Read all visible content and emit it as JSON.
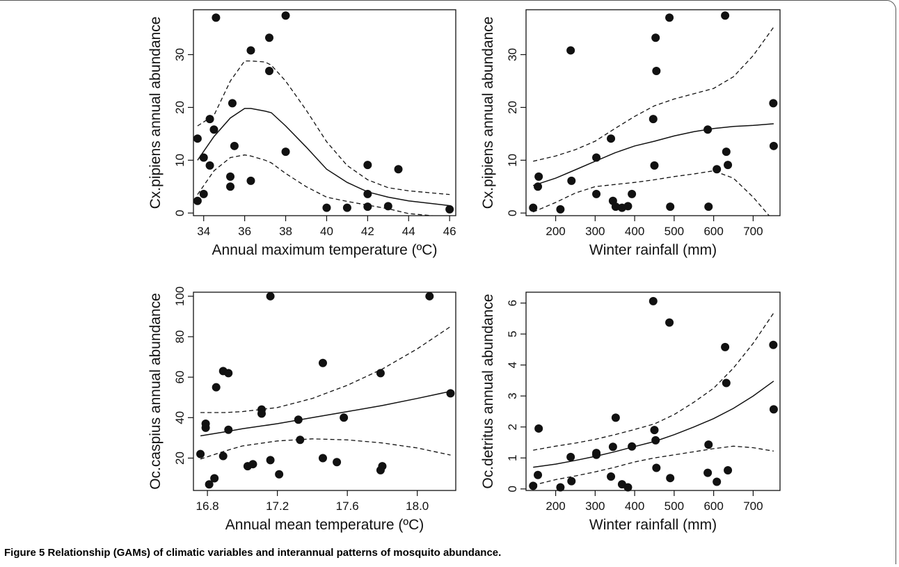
{
  "figure": {
    "caption_label": "Figure 5",
    "caption_text": "Relationship (GAMs) of climatic variables and interannual patterns of mosquito abundance."
  },
  "chart_data": [
    {
      "type": "scatter",
      "xlabel": "Annual maximum temperature (ºC)",
      "ylabel": "Cx.pipiens annual abundance",
      "xlim": [
        33.5,
        46.3
      ],
      "ylim": [
        -0.5,
        38.5
      ],
      "xticks": [
        34,
        36,
        38,
        40,
        42,
        44,
        46
      ],
      "xtick_labels": [
        "34",
        "36",
        "38",
        "40",
        "42",
        "44",
        "46"
      ],
      "yticks": [
        0,
        10,
        20,
        30
      ],
      "ytick_labels": [
        "0",
        "10",
        "20",
        "30"
      ],
      "points": {
        "x": [
          33.7,
          34.0,
          34.0,
          34.3,
          34.3,
          34.5,
          34.6,
          35.3,
          35.3,
          35.4,
          35.5,
          36.3,
          36.3,
          37.2,
          37.2,
          38.0,
          38.0,
          40.0,
          41.0,
          42.0,
          42.0,
          42.0,
          43.0,
          43.5,
          46.0
        ],
        "y": [
          2.3,
          10.5,
          3.6,
          17.8,
          9.0,
          15.8,
          37.0,
          6.9,
          5.0,
          20.8,
          12.7,
          30.8,
          6.1,
          33.2,
          26.9,
          37.4,
          11.6,
          1.0,
          1.0,
          9.1,
          3.6,
          1.2,
          1.3,
          8.3,
          0.7
        ],
        "extra_x": [
          33.7
        ],
        "extra_y": [
          14.1
        ]
      },
      "fit": {
        "x": [
          33.7,
          34.5,
          35.3,
          36.0,
          36.3,
          37.0,
          37.3,
          38.0,
          39.0,
          40.0,
          41.0,
          42.0,
          43.0,
          44.0,
          46.0
        ],
        "y": [
          10.0,
          14.5,
          18.0,
          19.8,
          19.8,
          19.3,
          19.0,
          16.5,
          12.5,
          8.3,
          5.8,
          4.0,
          3.0,
          2.3,
          1.4
        ],
        "upper": [
          16.5,
          18.5,
          25.0,
          28.8,
          28.8,
          28.6,
          28.0,
          25.0,
          19.5,
          13.5,
          9.0,
          6.3,
          4.8,
          4.2,
          3.5
        ],
        "lower": [
          3.5,
          8.0,
          10.5,
          11.0,
          10.8,
          10.0,
          9.5,
          7.5,
          5.0,
          3.0,
          2.2,
          1.5,
          0.8,
          -0.1,
          -0.8
        ]
      }
    },
    {
      "type": "scatter",
      "xlabel": "Winter rainfall (mm)",
      "ylabel": "Cx.pipiens annual abundance",
      "xlim": [
        125,
        768
      ],
      "ylim": [
        -0.5,
        38.5
      ],
      "xticks": [
        200,
        300,
        400,
        500,
        600,
        700
      ],
      "xtick_labels": [
        "200",
        "300",
        "400",
        "500",
        "600",
        "700"
      ],
      "yticks": [
        0,
        10,
        20,
        30
      ],
      "ytick_labels": [
        "0",
        "10",
        "20",
        "30"
      ],
      "points": {
        "x": [
          143,
          155,
          157,
          212,
          238,
          240,
          303,
          303,
          340,
          345,
          352,
          368,
          383,
          393,
          447,
          450,
          453,
          455,
          488,
          490,
          585,
          587,
          608,
          629,
          632,
          636,
          751,
          752
        ],
        "y": [
          1.0,
          5.0,
          6.9,
          0.7,
          30.8,
          6.1,
          10.5,
          3.6,
          14.1,
          2.3,
          1.2,
          1.0,
          1.3,
          3.6,
          17.8,
          9.0,
          33.2,
          26.9,
          37.0,
          1.2,
          15.8,
          1.2,
          8.3,
          37.4,
          11.6,
          9.1,
          20.8,
          12.7
        ]
      },
      "fit": {
        "x": [
          143,
          200,
          250,
          300,
          350,
          400,
          450,
          500,
          550,
          600,
          650,
          700,
          752
        ],
        "y": [
          5.2,
          6.6,
          8.2,
          9.8,
          11.4,
          12.7,
          13.6,
          14.6,
          15.4,
          16.0,
          16.4,
          16.6,
          16.9
        ],
        "upper": [
          9.8,
          10.8,
          12.0,
          13.6,
          16.0,
          18.3,
          20.3,
          21.6,
          22.6,
          23.6,
          25.8,
          29.8,
          35.2
        ],
        "lower": [
          0.2,
          2.0,
          3.8,
          5.0,
          5.4,
          5.8,
          6.3,
          6.9,
          7.4,
          8.0,
          6.6,
          3.0,
          -1.5
        ]
      }
    },
    {
      "type": "scatter",
      "xlabel": "Annual mean temperature (ºC)",
      "ylabel": "Oc.caspius annual abundance",
      "xlim": [
        16.72,
        18.22
      ],
      "ylim": [
        4,
        102
      ],
      "xticks": [
        16.8,
        17.2,
        17.6,
        18.0
      ],
      "xtick_labels": [
        "16.8",
        "17.2",
        "17.6",
        "18.0"
      ],
      "yticks": [
        20,
        40,
        60,
        80,
        100
      ],
      "ytick_labels": [
        "20",
        "40",
        "60",
        "80",
        "100"
      ],
      "points": {
        "x": [
          16.76,
          16.79,
          16.79,
          16.81,
          16.84,
          16.85,
          16.89,
          16.89,
          16.92,
          16.92,
          17.03,
          17.06,
          17.11,
          17.11,
          17.16,
          17.16,
          17.21,
          17.32,
          17.33,
          17.46,
          17.46,
          17.54,
          17.58,
          17.79,
          17.79,
          17.8,
          18.07,
          18.19
        ],
        "y": [
          22,
          37,
          35,
          7,
          10,
          55,
          21,
          63,
          62,
          34,
          16,
          17,
          44,
          42,
          100,
          19,
          12,
          39,
          29,
          67,
          20,
          18,
          40,
          62,
          14,
          16,
          100,
          52
        ]
      },
      "fit": {
        "x": [
          16.76,
          16.9,
          17.0,
          17.2,
          17.4,
          17.6,
          17.8,
          18.0,
          18.19
        ],
        "y": [
          31.0,
          33.0,
          34.5,
          37.0,
          40.0,
          43.0,
          46.0,
          49.5,
          53.0
        ],
        "upper": [
          42.5,
          42.5,
          43.0,
          45.0,
          49.5,
          56.0,
          64.0,
          74.0,
          85.0
        ],
        "lower": [
          19.5,
          23.5,
          26.0,
          28.5,
          29.5,
          29.0,
          27.5,
          25.0,
          21.5
        ]
      }
    },
    {
      "type": "scatter",
      "xlabel": "Winter rainfall (mm)",
      "ylabel": "Oc.detritus annual abundance",
      "xlim": [
        125,
        768
      ],
      "ylim": [
        -0.05,
        6.35
      ],
      "xticks": [
        200,
        300,
        400,
        500,
        600,
        700
      ],
      "xtick_labels": [
        "200",
        "300",
        "400",
        "500",
        "600",
        "700"
      ],
      "yticks": [
        0,
        1,
        2,
        3,
        4,
        5,
        6
      ],
      "ytick_labels": [
        "0",
        "1",
        "2",
        "3",
        "4",
        "5",
        "6"
      ],
      "points": {
        "x": [
          143,
          155,
          157,
          212,
          238,
          240,
          303,
          303,
          340,
          345,
          352,
          368,
          383,
          393,
          447,
          450,
          453,
          455,
          488,
          490,
          585,
          587,
          608,
          629,
          632,
          636,
          751,
          752
        ],
        "y": [
          0.1,
          0.45,
          1.95,
          0.05,
          1.03,
          0.25,
          1.1,
          1.16,
          0.4,
          1.36,
          2.3,
          0.15,
          0.05,
          1.37,
          6.06,
          1.9,
          1.57,
          0.68,
          5.37,
          0.35,
          0.52,
          1.43,
          0.23,
          4.58,
          3.42,
          0.6,
          4.65,
          2.57
        ]
      },
      "fit": {
        "x": [
          143,
          200,
          250,
          300,
          350,
          400,
          450,
          500,
          550,
          600,
          650,
          700,
          752
        ],
        "y": [
          0.7,
          0.8,
          0.92,
          1.05,
          1.2,
          1.37,
          1.53,
          1.75,
          2.0,
          2.27,
          2.6,
          3.0,
          3.48
        ],
        "upper": [
          1.25,
          1.38,
          1.48,
          1.6,
          1.75,
          1.92,
          2.1,
          2.4,
          2.8,
          3.25,
          3.9,
          4.7,
          5.68
        ],
        "lower": [
          0.12,
          0.3,
          0.42,
          0.55,
          0.7,
          0.87,
          1.0,
          1.1,
          1.2,
          1.3,
          1.38,
          1.33,
          1.22
        ]
      }
    }
  ]
}
